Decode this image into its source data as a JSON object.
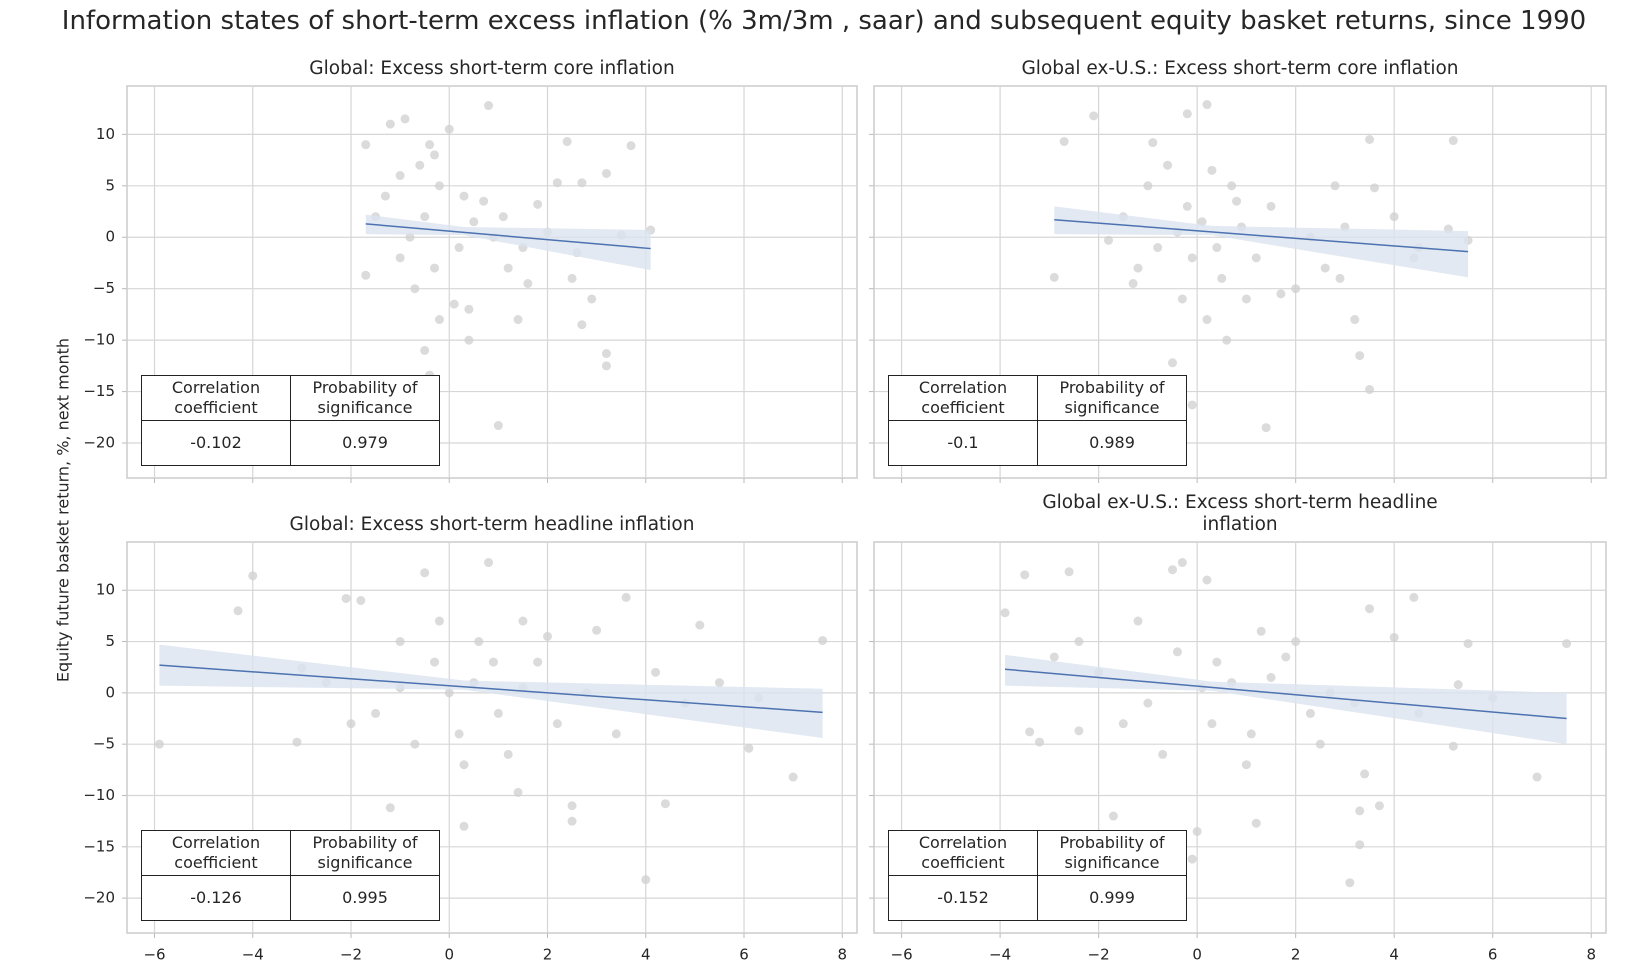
{
  "title": "Information states of short-term excess inflation (% 3m/3m , saar) and subsequent equity basket returns, since 1990",
  "y_label": "Equity future basket return, %, next month",
  "chart_data": [
    {
      "type": "scatter",
      "title": "Global: Excess short-term core inflation",
      "xlim": [
        -6.56,
        8.3
      ],
      "ylim": [
        -23.4,
        14.7
      ],
      "xticks": [
        {
          "value": -6,
          "label": "−6"
        },
        {
          "value": -4,
          "label": "−4"
        },
        {
          "value": -2,
          "label": "−2"
        },
        0,
        2,
        4,
        6,
        8
      ],
      "yticks": [
        10,
        5,
        0,
        {
          "value": -5,
          "label": "−5"
        },
        {
          "value": -10,
          "label": "−10"
        },
        {
          "value": -15,
          "label": "−15"
        },
        {
          "value": -20,
          "label": "−20"
        }
      ],
      "grid": true,
      "point_color": "#cfcfcf",
      "line_color": "#4c72b0",
      "band_color": "#dbe3f0",
      "x": [
        -1.7,
        -1.2,
        -0.9,
        -0.4,
        0.8,
        2.4,
        3.7,
        -1.7,
        -0.4,
        -0.5,
        0.4,
        1,
        3.2,
        3.2,
        3.2,
        4.1,
        2.7,
        -1.3,
        -1,
        -0.6,
        -0.3,
        0,
        -0.2,
        0.1,
        0.4,
        1.4,
        2.5,
        2.9,
        1.8,
        2.2,
        2.7,
        1.2,
        0.7,
        0.5,
        -0.5,
        -0.8,
        -1,
        -0.3,
        0.2,
        0.9,
        1.5,
        2,
        2.6,
        3.5,
        -1.5,
        -0.7,
        0.3,
        -0.2,
        1.1,
        1.6
      ],
      "y": [
        9,
        11,
        11.5,
        9,
        12.8,
        9.3,
        8.9,
        -3.7,
        -13.4,
        -11,
        -10,
        -18.3,
        -12.5,
        -11.3,
        6.2,
        0.7,
        -8.5,
        4,
        6,
        7,
        8,
        10.5,
        -8,
        -6.5,
        -7,
        -8,
        -4,
        -6,
        3.2,
        5.3,
        5.3,
        -3,
        3.5,
        1.5,
        2,
        0,
        -2,
        -3,
        -1,
        0,
        -1,
        0.5,
        -1.5,
        0.2,
        2,
        -5,
        4,
        5,
        2,
        -4.5
      ],
      "fit_x": [
        -1.7,
        4.1
      ],
      "fit_y": [
        1.3,
        -1.1
      ],
      "band_x": [
        -1.7,
        0.3,
        4.1
      ],
      "band_low": [
        0.3,
        0.2,
        -3.2
      ],
      "band_high": [
        2.2,
        1.0,
        0.7
      ],
      "table": {
        "header": [
          "Correlation coefficient",
          "Probability of significance"
        ],
        "row": [
          -0.102,
          0.979
        ]
      }
    },
    {
      "type": "scatter",
      "title": "Global ex-U.S.: Excess short-term core inflation",
      "xlim": [
        -6.56,
        8.3
      ],
      "ylim": [
        -23.4,
        14.7
      ],
      "xticks": [
        {
          "value": -6,
          "label": "−6"
        },
        {
          "value": -4,
          "label": "−4"
        },
        {
          "value": -2,
          "label": "−2"
        },
        0,
        2,
        4,
        6,
        8
      ],
      "yticks": [
        10,
        5,
        0,
        {
          "value": -5,
          "label": "−5"
        },
        {
          "value": -10,
          "label": "−10"
        },
        {
          "value": -15,
          "label": "−15"
        },
        {
          "value": -20,
          "label": "−20"
        }
      ],
      "grid": true,
      "point_color": "#cfcfcf",
      "line_color": "#4c72b0",
      "band_color": "#dbe3f0",
      "x": [
        -2.7,
        -2.1,
        -0.2,
        0.2,
        -0.9,
        3.5,
        5.2,
        -2.9,
        -0.5,
        -0.1,
        0.6,
        1.4,
        3.2,
        3.3,
        3.5,
        5.5,
        4,
        -1.5,
        -1,
        0.3,
        0.7,
        -0.3,
        0.2,
        1,
        2,
        2.9,
        3.6,
        2.8,
        1.5,
        0.9,
        0.4,
        -0.4,
        -0.8,
        -1.2,
        -0.2,
        0.1,
        1.2,
        2.3,
        2.6,
        4.5,
        -1.8,
        -0.6,
        0.5,
        1.7,
        3,
        -0.1,
        0.8,
        4.4,
        5.1,
        -1.3
      ],
      "y": [
        9.3,
        11.8,
        12,
        12.9,
        9.2,
        9.5,
        9.4,
        -3.9,
        -12.2,
        -16.3,
        -10,
        -18.5,
        -8,
        -11.5,
        -14.8,
        -0.3,
        2,
        2,
        5,
        6.5,
        5,
        -6,
        -8,
        -6,
        -5,
        -4,
        4.8,
        5,
        3,
        1,
        -1,
        0.5,
        -1,
        -3,
        3,
        1.5,
        -2,
        0,
        -3,
        -1,
        -0.3,
        7,
        -4,
        -5.5,
        1,
        -2,
        3.5,
        -2,
        0.8,
        -4.5
      ],
      "fit_x": [
        -2.9,
        5.5
      ],
      "fit_y": [
        1.7,
        -1.4
      ],
      "band_x": [
        -2.9,
        0.3,
        5.5
      ],
      "band_low": [
        0.3,
        0.2,
        -3.9
      ],
      "band_high": [
        3.0,
        1.1,
        0.6
      ],
      "table": {
        "header": [
          "Correlation coefficient",
          "Probability of significance"
        ],
        "row": [
          -0.1,
          0.989
        ]
      }
    },
    {
      "type": "scatter",
      "title": "Global: Excess short-term headline inflation",
      "xlim": [
        -6.56,
        8.3
      ],
      "ylim": [
        -23.4,
        14.7
      ],
      "xticks": [
        {
          "value": -6,
          "label": "−6"
        },
        {
          "value": -4,
          "label": "−4"
        },
        {
          "value": -2,
          "label": "−2"
        },
        0,
        2,
        4,
        6,
        8
      ],
      "yticks": [
        10,
        5,
        0,
        {
          "value": -5,
          "label": "−5"
        },
        {
          "value": -10,
          "label": "−10"
        },
        {
          "value": -15,
          "label": "−15"
        },
        {
          "value": -20,
          "label": "−20"
        }
      ],
      "grid": true,
      "point_color": "#cfcfcf",
      "line_color": "#4c72b0",
      "band_color": "#dbe3f0",
      "x": [
        -5.9,
        -4.3,
        -4,
        -3.1,
        -2.1,
        -1.8,
        -1.2,
        -0.5,
        0.8,
        -0.4,
        0.3,
        1.4,
        2.5,
        2.5,
        4,
        4.4,
        6.1,
        7,
        7.6,
        5.1,
        3.6,
        1.5,
        -1,
        -2.5,
        -3,
        -1.5,
        -0.3,
        0.2,
        0.5,
        1,
        1.8,
        2.2,
        2.8,
        3.4,
        4.8,
        5.5,
        6.3,
        -0.7,
        0,
        0.6,
        1.2,
        2,
        3,
        4.2,
        -2,
        -1,
        0.3,
        0.9,
        1.5,
        -0.2
      ],
      "y": [
        -5,
        8,
        11.4,
        -4.8,
        9.2,
        9,
        -11.2,
        11.7,
        12.7,
        -14.5,
        -13,
        -9.7,
        -11,
        -12.5,
        -18.2,
        -10.8,
        -5.4,
        -8.2,
        5.1,
        6.6,
        9.3,
        7,
        5,
        1,
        2.4,
        -2,
        3,
        -4,
        1,
        -2,
        3,
        -3,
        0,
        -4,
        -1,
        1,
        -0.5,
        -5,
        0,
        5,
        -6,
        5.5,
        6.1,
        2,
        -3,
        0.5,
        -7,
        3,
        0.5,
        7
      ],
      "fit_x": [
        -5.9,
        7.6
      ],
      "fit_y": [
        2.7,
        -1.9
      ],
      "band_x": [
        -5.9,
        0.3,
        7.6
      ],
      "band_low": [
        0.7,
        0.3,
        -4.4
      ],
      "band_high": [
        4.7,
        1.2,
        0.4
      ],
      "table": {
        "header": [
          "Correlation coefficient",
          "Probability of significance"
        ],
        "row": [
          -0.126,
          0.995
        ]
      }
    },
    {
      "type": "scatter",
      "title": "Global ex-U.S.: Excess short-term headline inflation",
      "xlim": [
        -6.56,
        8.3
      ],
      "ylim": [
        -23.4,
        14.7
      ],
      "xticks": [
        {
          "value": -6,
          "label": "−6"
        },
        {
          "value": -4,
          "label": "−4"
        },
        {
          "value": -2,
          "label": "−2"
        },
        0,
        2,
        4,
        6,
        8
      ],
      "yticks": [
        10,
        5,
        0,
        {
          "value": -5,
          "label": "−5"
        },
        {
          "value": -10,
          "label": "−10"
        },
        {
          "value": -15,
          "label": "−15"
        },
        {
          "value": -20,
          "label": "−20"
        }
      ],
      "grid": true,
      "point_color": "#cfcfcf",
      "line_color": "#4c72b0",
      "band_color": "#dbe3f0",
      "x": [
        -3.9,
        -3.5,
        -2.6,
        -2.9,
        -3.4,
        -3.2,
        -0.3,
        -0.5,
        0.2,
        -2.4,
        -1.7,
        -0.1,
        0,
        1.2,
        3.1,
        3.3,
        3.3,
        3.4,
        3.7,
        5.2,
        6.9,
        7.5,
        4.4,
        3.5,
        5.5,
        4,
        1.3,
        -1.2,
        -2,
        -1,
        -0.4,
        0.3,
        0.7,
        1.1,
        1.8,
        2.3,
        2.7,
        3.2,
        4.5,
        5.3,
        6,
        -1.5,
        -0.7,
        0.4,
        1,
        2,
        2.5,
        -2.4,
        0.1,
        1.5
      ],
      "y": [
        7.8,
        11.5,
        11.8,
        3.5,
        -3.8,
        -4.8,
        12.7,
        12,
        11,
        -3.7,
        -12,
        -16.2,
        -13.5,
        -12.7,
        -18.5,
        -14.8,
        -11.5,
        -7.9,
        -11,
        -5.2,
        -8.2,
        4.8,
        9.3,
        8.2,
        4.8,
        5.4,
        6,
        7,
        2,
        -1,
        4,
        -3,
        1,
        -4,
        3.5,
        -2,
        0,
        -1,
        -2,
        0.8,
        -0.5,
        -3,
        -6,
        3,
        -7,
        5,
        -5,
        5,
        0.5,
        1.5
      ],
      "fit_x": [
        -3.9,
        7.5
      ],
      "fit_y": [
        2.3,
        -2.5
      ],
      "band_x": [
        -3.9,
        0.3,
        7.5
      ],
      "band_low": [
        0.7,
        0.2,
        -5.0
      ],
      "band_high": [
        3.7,
        1.1,
        0.0
      ],
      "table": {
        "header": [
          "Correlation coefficient",
          "Probability of significance"
        ],
        "row": [
          -0.152,
          0.999
        ]
      }
    }
  ]
}
